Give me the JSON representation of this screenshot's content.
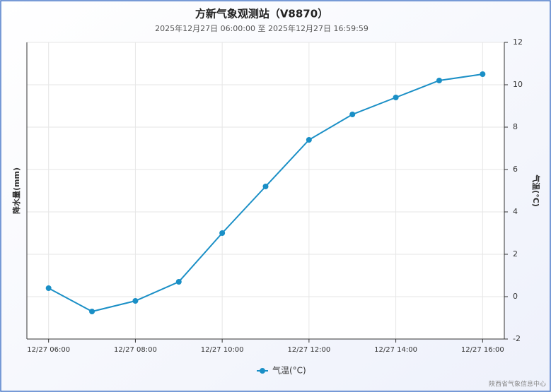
{
  "chart_data": {
    "type": "line",
    "title": "方新气象观测站（V8870）",
    "subtitle": "2025年12月27日 06:00:00 至 2025年12月27日 16:59:59",
    "y_label": "降水量(mm)",
    "y2_label": "气温(°C)",
    "categories": [
      "12/27 06:00",
      null,
      "12/27 08:00",
      null,
      "12/27 10:00",
      null,
      "12/27 12:00",
      null,
      "12/27 14:00",
      null,
      "12/27 16:00"
    ],
    "series": [
      {
        "name": "气温(°C)",
        "color": "#1a8fc6",
        "axis": "y2",
        "values": [
          0.4,
          -0.7,
          -0.2,
          0.7,
          3.0,
          5.2,
          7.4,
          8.6,
          9.4,
          10.2,
          10.5
        ]
      }
    ],
    "y2lim": [
      -2,
      12
    ],
    "y2ticks": [
      -2,
      0,
      2,
      4,
      6,
      8,
      10,
      12
    ],
    "grid": true,
    "legend": "bottom",
    "credit": "陕西省气象信息中心"
  }
}
